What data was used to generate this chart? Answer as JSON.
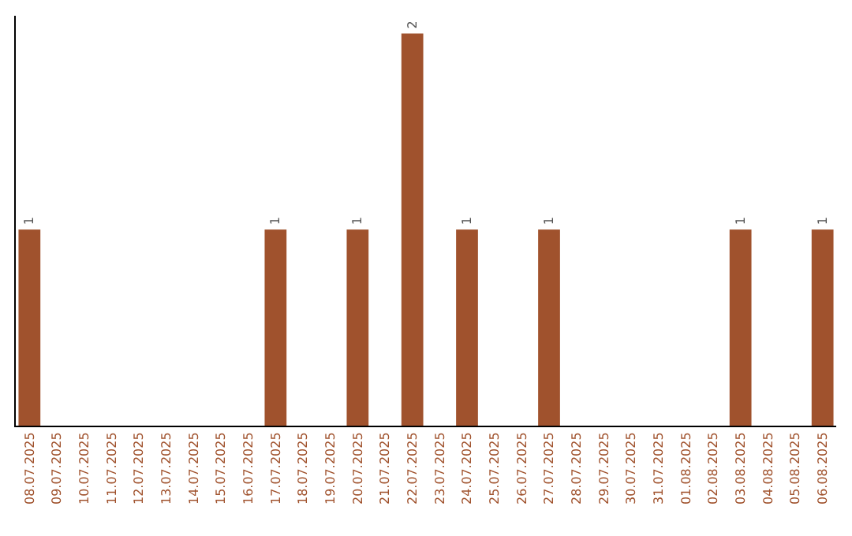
{
  "chart_data": {
    "type": "bar",
    "categories": [
      "08.07.2025",
      "09.07.2025",
      "10.07.2025",
      "11.07.2025",
      "12.07.2025",
      "13.07.2025",
      "14.07.2025",
      "15.07.2025",
      "16.07.2025",
      "17.07.2025",
      "18.07.2025",
      "19.07.2025",
      "20.07.2025",
      "21.07.2025",
      "22.07.2025",
      "23.07.2025",
      "24.07.2025",
      "25.07.2025",
      "26.07.2025",
      "27.07.2025",
      "28.07.2025",
      "29.07.2025",
      "30.07.2025",
      "31.07.2025",
      "01.08.2025",
      "02.08.2025",
      "03.08.2025",
      "04.08.2025",
      "05.08.2025",
      "06.08.2025"
    ],
    "values": [
      1,
      0,
      0,
      0,
      0,
      0,
      0,
      0,
      0,
      1,
      0,
      0,
      1,
      0,
      2,
      0,
      1,
      0,
      0,
      1,
      0,
      0,
      0,
      0,
      0,
      0,
      1,
      0,
      0,
      1
    ],
    "value_labels": [
      "1",
      null,
      null,
      null,
      null,
      null,
      null,
      null,
      null,
      "1",
      null,
      null,
      "1",
      null,
      "2",
      null,
      "1",
      null,
      null,
      "1",
      null,
      null,
      null,
      null,
      null,
      null,
      "1",
      null,
      null,
      "1"
    ],
    "color": "#a0522d",
    "tick_labels": "x"
  }
}
